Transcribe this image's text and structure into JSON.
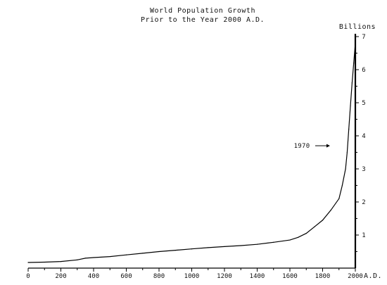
{
  "chart_data": {
    "type": "line",
    "title": "World Population Growth",
    "subtitle": "Prior to the Year 2000  A.D.",
    "xlabel": "A.D.",
    "ylabel": "Billions",
    "xlim": [
      0,
      2000
    ],
    "ylim": [
      0,
      7
    ],
    "x_ticks": [
      0,
      200,
      400,
      600,
      800,
      1000,
      1200,
      1400,
      1600,
      1800,
      2000
    ],
    "y_ticks": [
      1,
      2,
      3,
      4,
      5,
      6,
      7
    ],
    "grid": false,
    "y_axis_side": "right",
    "annotation": {
      "label": "1970",
      "x": 1970,
      "y": 3.7
    },
    "x": [
      0,
      100,
      200,
      300,
      350,
      400,
      500,
      600,
      700,
      800,
      900,
      1000,
      1100,
      1200,
      1300,
      1400,
      1500,
      1600,
      1650,
      1700,
      1750,
      1800,
      1850,
      1900,
      1920,
      1940,
      1950,
      1960,
      1970,
      1980,
      1990,
      2000
    ],
    "values": [
      0.17,
      0.18,
      0.2,
      0.25,
      0.3,
      0.32,
      0.35,
      0.4,
      0.45,
      0.5,
      0.54,
      0.58,
      0.62,
      0.65,
      0.68,
      0.72,
      0.78,
      0.85,
      0.93,
      1.05,
      1.25,
      1.45,
      1.75,
      2.1,
      2.5,
      3.0,
      3.5,
      4.2,
      4.9,
      5.6,
      6.2,
      6.8
    ]
  }
}
